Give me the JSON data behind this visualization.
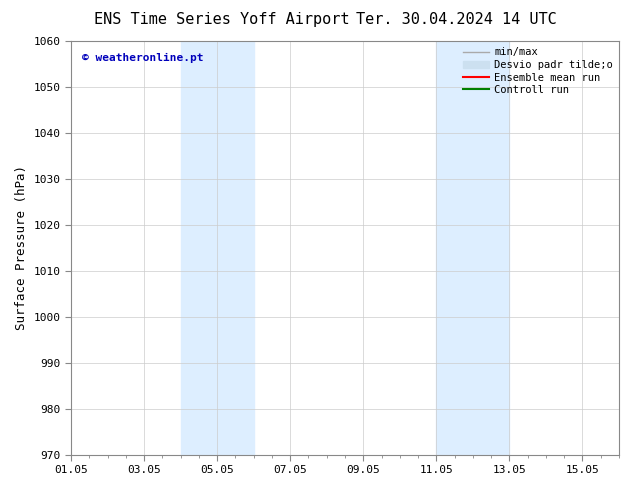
{
  "title_left": "ENS Time Series Yoff Airport",
  "title_right": "Ter. 30.04.2024 14 UTC",
  "ylabel": "Surface Pressure (hPa)",
  "ylim": [
    970,
    1060
  ],
  "yticks": [
    970,
    980,
    990,
    1000,
    1010,
    1020,
    1030,
    1040,
    1050,
    1060
  ],
  "xtick_labels": [
    "01.05",
    "03.05",
    "05.05",
    "07.05",
    "09.05",
    "11.05",
    "13.05",
    "15.05"
  ],
  "xtick_positions": [
    0,
    2,
    4,
    6,
    8,
    10,
    12,
    14
  ],
  "xlim": [
    0,
    15
  ],
  "shaded_bands": [
    {
      "x_start": 3.0,
      "x_end": 5.0,
      "color": "#ddeeff"
    },
    {
      "x_start": 10.0,
      "x_end": 12.0,
      "color": "#ddeeff"
    }
  ],
  "watermark_text": "© weatheronline.pt",
  "watermark_color": "#0000bb",
  "background_color": "#ffffff",
  "legend_labels": [
    "min/max",
    "Desvio padr tilde;o",
    "Ensemble mean run",
    "Controll run"
  ],
  "legend_colors": [
    "#aaaaaa",
    "#cce0f0",
    "#ff0000",
    "#008000"
  ],
  "title_fontsize": 11,
  "tick_fontsize": 8,
  "ylabel_fontsize": 9,
  "grid_color": "#cccccc",
  "spine_color": "#888888"
}
